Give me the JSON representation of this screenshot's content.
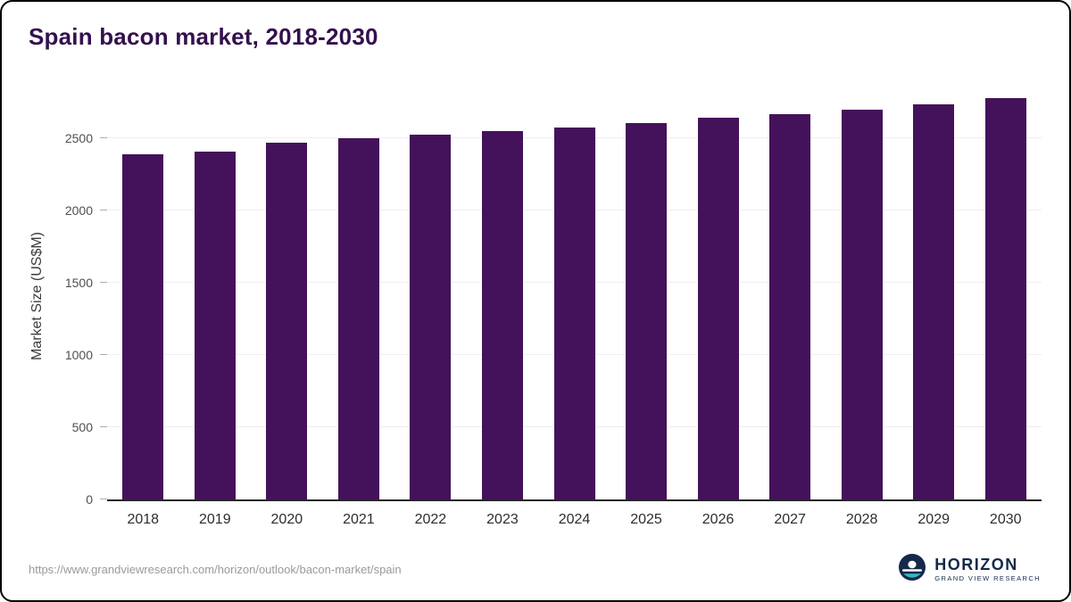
{
  "chart_data": {
    "type": "bar",
    "title": "Spain bacon market, 2018-2030",
    "xlabel": "",
    "ylabel": "Market Size (US$M)",
    "categories": [
      "2018",
      "2019",
      "2020",
      "2021",
      "2022",
      "2023",
      "2024",
      "2025",
      "2026",
      "2027",
      "2028",
      "2029",
      "2030"
    ],
    "values": [
      2390,
      2410,
      2470,
      2500,
      2525,
      2550,
      2575,
      2605,
      2640,
      2665,
      2700,
      2735,
      2775
    ],
    "yticks": [
      0,
      500,
      1000,
      1500,
      2000,
      2500
    ],
    "ylim": [
      0,
      2850
    ],
    "grid": true,
    "legend": false,
    "bar_color": "#44125a"
  },
  "footer": {
    "source_url": "https://www.grandviewresearch.com/horizon/outlook/bacon-market/spain",
    "logo": {
      "name": "HORIZON",
      "tagline": "GRAND VIEW RESEARCH",
      "navy": "#14294b",
      "teal": "#38b6c3"
    }
  }
}
